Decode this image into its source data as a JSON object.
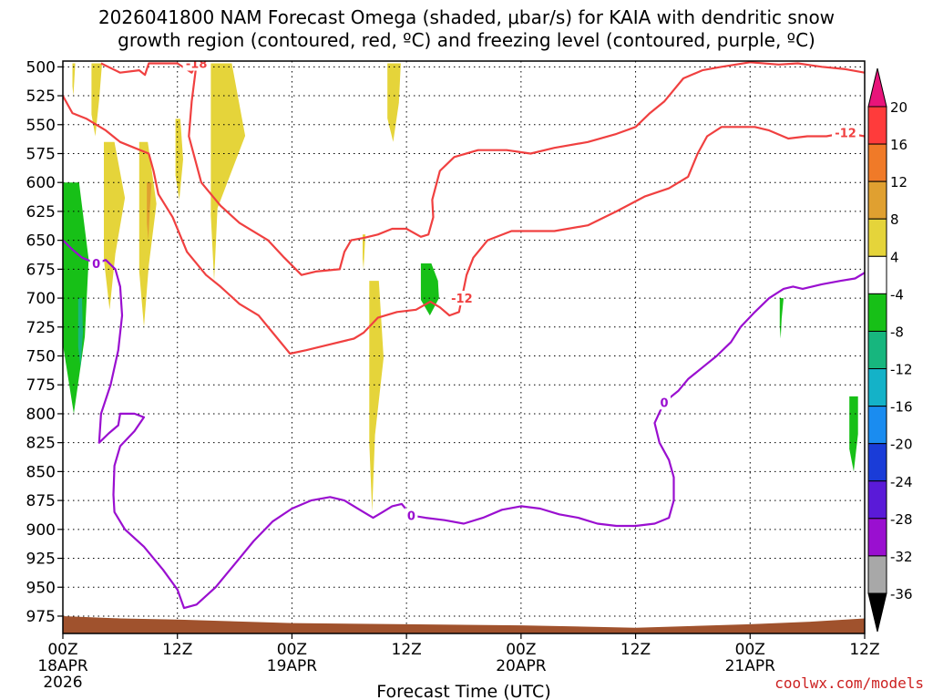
{
  "chart_data": {
    "type": "contour",
    "title_line1": "2026041800 NAM Forecast Omega (shaded, μbar/s) for KAIA with dendritic snow",
    "title_line2": "growth region (contoured, red, ºC) and freezing level (contoured, purple, ºC)",
    "xlabel": "Forecast Time (UTC)",
    "credit": "coolwx.com/models",
    "xlim_hours": [
      0,
      84
    ],
    "ylim_mb": [
      495,
      990
    ],
    "x_ticks": [
      {
        "h": 0,
        "l1": "00Z",
        "l2": "18APR",
        "l3": "2026"
      },
      {
        "h": 12,
        "l1": "12Z",
        "l2": "",
        "l3": ""
      },
      {
        "h": 24,
        "l1": "00Z",
        "l2": "19APR",
        "l3": ""
      },
      {
        "h": 36,
        "l1": "12Z",
        "l2": "",
        "l3": ""
      },
      {
        "h": 48,
        "l1": "00Z",
        "l2": "20APR",
        "l3": ""
      },
      {
        "h": 60,
        "l1": "12Z",
        "l2": "",
        "l3": ""
      },
      {
        "h": 72,
        "l1": "00Z",
        "l2": "21APR",
        "l3": ""
      },
      {
        "h": 84,
        "l1": "12Z",
        "l2": "",
        "l3": ""
      }
    ],
    "y_ticks": [
      "500",
      "525",
      "550",
      "575",
      "600",
      "625",
      "650",
      "675",
      "700",
      "725",
      "750",
      "775",
      "800",
      "825",
      "850",
      "875",
      "900",
      "925",
      "950",
      "975"
    ],
    "colorbar": {
      "ticks": [
        "20",
        "16",
        "12",
        "8",
        "4",
        "-4",
        "-8",
        "-12",
        "-16",
        "-20",
        "-24",
        "-28",
        "-32",
        "-36"
      ],
      "colors": [
        "#ff3b3b",
        "#f07a28",
        "#e0a030",
        "#e5d43a",
        "#ffffff",
        "#17c017",
        "#17b67e",
        "#14b2c8",
        "#1a8cf0",
        "#1a3cd8",
        "#5a1ad8",
        "#9a0fd0",
        "#a8a8a8"
      ],
      "top_arrow": "#e8147a",
      "bottom_arrow": "#000000"
    },
    "omega_series": [
      {
        "name": "yellow (4 to 8)",
        "color": "#e5d43a",
        "blobs": [
          {
            "h": [
              1.0,
              1.3,
              1.2
            ],
            "p": [
              497,
              525
            ]
          },
          {
            "h": [
              3.0,
              4.1,
              3.8
            ],
            "p": [
              497,
              560
            ]
          },
          {
            "h": [
              4.3,
              5.4,
              6.5,
              5.5
            ],
            "p": [
              565,
              710
            ]
          },
          {
            "h": [
              8.0,
              8.9,
              9.8,
              9.0
            ],
            "p": [
              565,
              725
            ]
          },
          {
            "h": [
              11.8,
              12.3,
              12.6
            ],
            "p": [
              545,
              615
            ]
          },
          {
            "h": [
              15.5,
              17.7,
              19.1,
              16.2
            ],
            "p": [
              497,
              685
            ]
          },
          {
            "h": [
              34.0,
              35.4,
              35.2
            ],
            "p": [
              497,
              565
            ]
          },
          {
            "h": [
              31.4,
              31.7,
              31.6
            ],
            "p": [
              645,
              675
            ]
          },
          {
            "h": [
              32.1,
              33.1,
              33.6,
              32.7
            ],
            "p": [
              685,
              885
            ]
          }
        ]
      },
      {
        "name": "orange (8 to 12)",
        "color": "#e0a030",
        "blobs": [
          {
            "h": [
              8.8,
              9.3,
              9.1
            ],
            "p": [
              600,
              650
            ]
          }
        ]
      },
      {
        "name": "green (-4 to -8)",
        "color": "#17c017",
        "blobs": [
          {
            "h": [
              0.0,
              1.7,
              2.7,
              2.3
            ],
            "p": [
              600,
              800
            ]
          },
          {
            "h": [
              37.5,
              38.6,
              39.3,
              39.4
            ],
            "p": [
              670,
              715
            ]
          },
          {
            "h": [
              75.1,
              75.5,
              75.3
            ],
            "p": [
              700,
              735
            ]
          },
          {
            "h": [
              82.4,
              83.3,
              83.3
            ],
            "p": [
              785,
              850
            ]
          }
        ]
      },
      {
        "name": "teal (-8 to -12)",
        "color": "#17b67e",
        "blobs": [
          {
            "h": [
              1.6,
              2.0,
              2.1
            ],
            "p": [
              700,
              760
            ]
          }
        ]
      }
    ],
    "red_contours": [
      {
        "label": "-18",
        "color": "#f04040",
        "points": [
          [
            4.0,
            497
          ],
          [
            6.0,
            505
          ],
          [
            8.0,
            503
          ],
          [
            8.6,
            507
          ],
          [
            9.0,
            497
          ],
          [
            12.0,
            497
          ],
          [
            13.5,
            505
          ],
          [
            14.0,
            497
          ],
          [
            13.5,
            530
          ],
          [
            13.2,
            560
          ],
          [
            14.5,
            600
          ],
          [
            16.5,
            620
          ],
          [
            18.5,
            635
          ],
          [
            21.5,
            650
          ],
          [
            23.2,
            665
          ],
          [
            25.0,
            680
          ],
          [
            26.5,
            677
          ],
          [
            29.0,
            675
          ],
          [
            29.5,
            660
          ],
          [
            30.2,
            650
          ],
          [
            31.5,
            648
          ],
          [
            33.0,
            645
          ],
          [
            34.5,
            640
          ],
          [
            36.0,
            640
          ],
          [
            37.5,
            647
          ],
          [
            38.3,
            645
          ],
          [
            38.8,
            630
          ],
          [
            38.7,
            615
          ],
          [
            39.5,
            590
          ],
          [
            41.0,
            578
          ],
          [
            43.5,
            572
          ],
          [
            46.5,
            572
          ],
          [
            49.0,
            575
          ],
          [
            51.5,
            570
          ],
          [
            55.0,
            565
          ],
          [
            58.0,
            558
          ],
          [
            60.0,
            552
          ],
          [
            61.5,
            540
          ],
          [
            63.0,
            530
          ],
          [
            64.0,
            520
          ],
          [
            65.0,
            510
          ],
          [
            67.0,
            503
          ],
          [
            69.0,
            500
          ],
          [
            72.0,
            496
          ],
          [
            75.0,
            498
          ],
          [
            77.0,
            497
          ],
          [
            79.5,
            500
          ],
          [
            82.0,
            502
          ],
          [
            84.0,
            505
          ]
        ],
        "labels": [
          {
            "at": 7,
            "text": "-18"
          }
        ]
      },
      {
        "label": "-12",
        "color": "#f04040",
        "points": [
          [
            0.0,
            525
          ],
          [
            1.0,
            540
          ],
          [
            2.5,
            545
          ],
          [
            4.5,
            555
          ],
          [
            6.0,
            565
          ],
          [
            7.5,
            570
          ],
          [
            9.0,
            575
          ],
          [
            9.5,
            590
          ],
          [
            10.0,
            610
          ],
          [
            11.5,
            630
          ],
          [
            13.0,
            660
          ],
          [
            15.0,
            680
          ],
          [
            16.5,
            690
          ],
          [
            18.5,
            705
          ],
          [
            20.5,
            715
          ],
          [
            22.5,
            735
          ],
          [
            23.8,
            748
          ],
          [
            25.5,
            745
          ],
          [
            28.0,
            740
          ],
          [
            30.5,
            735
          ],
          [
            31.5,
            730
          ],
          [
            33.0,
            717
          ],
          [
            35.0,
            712
          ],
          [
            37.0,
            710
          ],
          [
            38.5,
            703
          ],
          [
            39.5,
            708
          ],
          [
            40.5,
            715
          ],
          [
            41.5,
            712
          ],
          [
            41.8,
            700
          ],
          [
            42.3,
            680
          ],
          [
            43.0,
            665
          ],
          [
            44.5,
            650
          ],
          [
            47.0,
            642
          ],
          [
            51.5,
            642
          ],
          [
            55.0,
            637
          ],
          [
            58.0,
            625
          ],
          [
            61.0,
            612
          ],
          [
            63.5,
            605
          ],
          [
            65.5,
            595
          ],
          [
            66.5,
            575
          ],
          [
            67.5,
            560
          ],
          [
            69.0,
            552
          ],
          [
            71.0,
            552
          ],
          [
            72.5,
            552
          ],
          [
            74.0,
            555
          ],
          [
            76.0,
            562
          ],
          [
            78.0,
            560
          ],
          [
            80.0,
            560
          ],
          [
            82.0,
            557
          ],
          [
            84.0,
            560
          ]
        ],
        "labels": [
          {
            "at": 28,
            "text": "-12"
          },
          {
            "at": 48,
            "text": "-12"
          }
        ]
      }
    ],
    "purple_contours": [
      {
        "label": "0",
        "color": "#9a0fd0",
        "points": [
          [
            0.0,
            650
          ],
          [
            1.0,
            658
          ],
          [
            2.0,
            665
          ],
          [
            3.5,
            670
          ],
          [
            4.5,
            667
          ],
          [
            5.5,
            675
          ],
          [
            6.0,
            690
          ],
          [
            6.2,
            715
          ],
          [
            5.8,
            745
          ],
          [
            5.0,
            775
          ],
          [
            4.0,
            800
          ],
          [
            3.8,
            825
          ],
          [
            4.8,
            817
          ],
          [
            5.8,
            810
          ],
          [
            6.0,
            800
          ],
          [
            7.5,
            800
          ],
          [
            8.5,
            803
          ],
          [
            7.5,
            815
          ],
          [
            6.0,
            828
          ],
          [
            5.4,
            845
          ],
          [
            5.3,
            870
          ],
          [
            5.4,
            885
          ],
          [
            6.5,
            900
          ],
          [
            8.5,
            915
          ],
          [
            10.5,
            935
          ],
          [
            12.0,
            952
          ],
          [
            12.7,
            968
          ],
          [
            14.0,
            965
          ],
          [
            16.0,
            950
          ],
          [
            18.0,
            930
          ],
          [
            20.0,
            910
          ],
          [
            22.0,
            893
          ],
          [
            24.0,
            882
          ],
          [
            26.0,
            875
          ],
          [
            28.0,
            872
          ],
          [
            29.5,
            875
          ],
          [
            31.5,
            885
          ],
          [
            32.5,
            890
          ],
          [
            33.5,
            885
          ],
          [
            34.5,
            880
          ],
          [
            35.5,
            878
          ],
          [
            36.5,
            888
          ],
          [
            38.0,
            890
          ],
          [
            40.0,
            892
          ],
          [
            42.0,
            895
          ],
          [
            44.0,
            890
          ],
          [
            46.0,
            883
          ],
          [
            48.0,
            880
          ],
          [
            50.0,
            882
          ],
          [
            52.0,
            887
          ],
          [
            54.0,
            890
          ],
          [
            56.0,
            895
          ],
          [
            58.0,
            897
          ],
          [
            60.0,
            897
          ],
          [
            62.0,
            895
          ],
          [
            63.5,
            890
          ],
          [
            64.0,
            875
          ],
          [
            64.0,
            855
          ],
          [
            63.5,
            840
          ],
          [
            62.5,
            825
          ],
          [
            62.0,
            808
          ],
          [
            63.0,
            790
          ],
          [
            64.5,
            780
          ],
          [
            65.5,
            770
          ],
          [
            67.0,
            760
          ],
          [
            68.5,
            750
          ],
          [
            70.0,
            738
          ],
          [
            71.0,
            725
          ],
          [
            72.5,
            712
          ],
          [
            74.0,
            700
          ],
          [
            75.5,
            692
          ],
          [
            76.5,
            690
          ],
          [
            77.5,
            692
          ],
          [
            78.5,
            690
          ],
          [
            79.5,
            688
          ],
          [
            81.5,
            685
          ],
          [
            83.0,
            683
          ],
          [
            84.0,
            678
          ]
        ],
        "labels": [
          {
            "at": 3,
            "text": "0"
          },
          {
            "at": 41,
            "text": "0"
          },
          {
            "at": 61,
            "text": "0"
          }
        ]
      }
    ],
    "terrain": {
      "color": "#a0522d",
      "points": [
        [
          0,
          975
        ],
        [
          6,
          977
        ],
        [
          12,
          978
        ],
        [
          24,
          981
        ],
        [
          36,
          982
        ],
        [
          48,
          983
        ],
        [
          60,
          985
        ],
        [
          72,
          982
        ],
        [
          78,
          980
        ],
        [
          84,
          977
        ]
      ]
    }
  }
}
